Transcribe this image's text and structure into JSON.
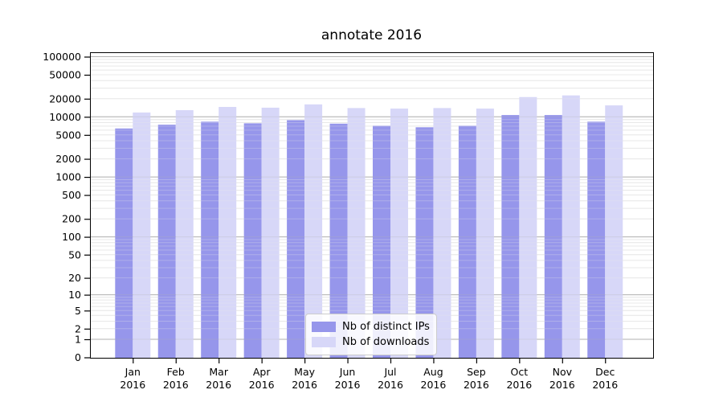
{
  "chart_data": {
    "type": "bar",
    "title": "annotate 2016",
    "year": "2016",
    "categories": [
      "Jan",
      "Feb",
      "Mar",
      "Apr",
      "May",
      "Jun",
      "Jul",
      "Aug",
      "Sep",
      "Oct",
      "Nov",
      "Dec"
    ],
    "series": [
      {
        "name": "Nb of distinct IPs",
        "color": "#9696eb",
        "values": [
          6400,
          7400,
          8300,
          7800,
          8800,
          7700,
          7100,
          6700,
          7100,
          10700,
          10700,
          8300
        ]
      },
      {
        "name": "Nb of downloads",
        "color": "#d7d7f8",
        "values": [
          11800,
          12900,
          14600,
          14200,
          16100,
          14000,
          13700,
          14000,
          13700,
          21300,
          22700,
          15500
        ]
      }
    ],
    "yscale": "log10(1+x)",
    "yticks": [
      0,
      1,
      2,
      5,
      10,
      20,
      50,
      100,
      200,
      500,
      1000,
      2000,
      5000,
      10000,
      20000,
      50000,
      100000
    ],
    "ylim": [
      0,
      120000
    ],
    "xlabel": "",
    "ylabel": "",
    "grid": true,
    "legend_position": "lower center",
    "colors": {
      "major_grid": "#b2b2b2",
      "minor_grid": "#e8e8e8",
      "axis": "#000000",
      "legend_border": "#cccccc"
    }
  }
}
